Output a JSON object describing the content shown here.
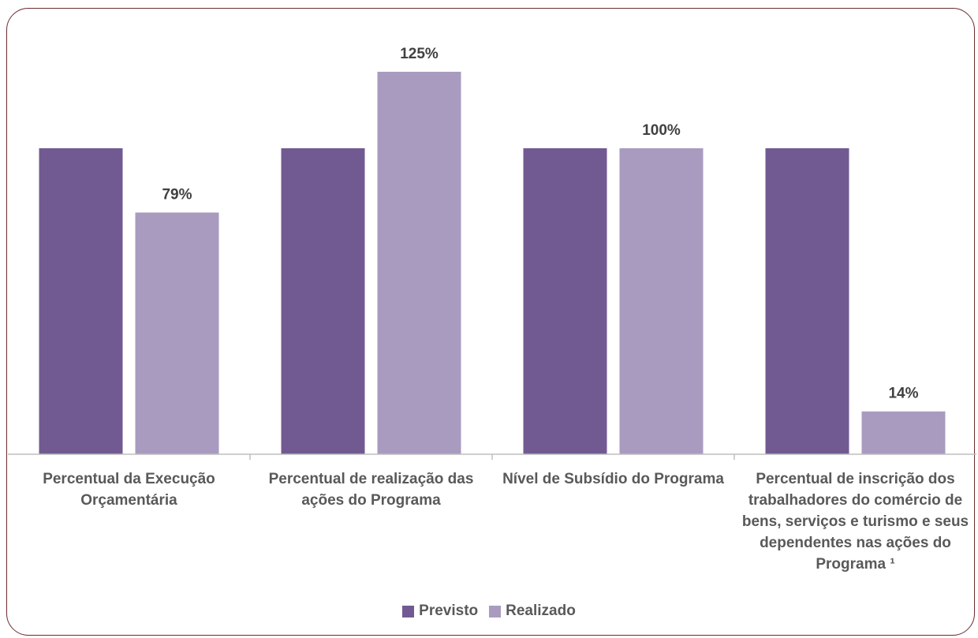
{
  "chart_data": {
    "type": "bar",
    "categories": [
      "Percentual da Execução Orçamentária",
      "Percentual de realização das ações do Programa",
      "Nível de Subsídio do Programa",
      "Percentual de inscrição dos trabalhadores do comércio de bens, serviços e turismo e seus dependentes nas ações do Programa ¹"
    ],
    "series": [
      {
        "name": "Previsto",
        "color": "#715a91",
        "values": [
          100,
          100,
          100,
          100
        ],
        "labels": [
          "",
          "",
          "",
          ""
        ]
      },
      {
        "name": "Realizado",
        "color": "#a99bbf",
        "values": [
          79,
          125,
          100,
          14
        ],
        "labels": [
          "79%",
          "125%",
          "100%",
          "14%"
        ]
      }
    ],
    "ylim": [
      0,
      130
    ],
    "grid": false,
    "legend": "bottom"
  }
}
